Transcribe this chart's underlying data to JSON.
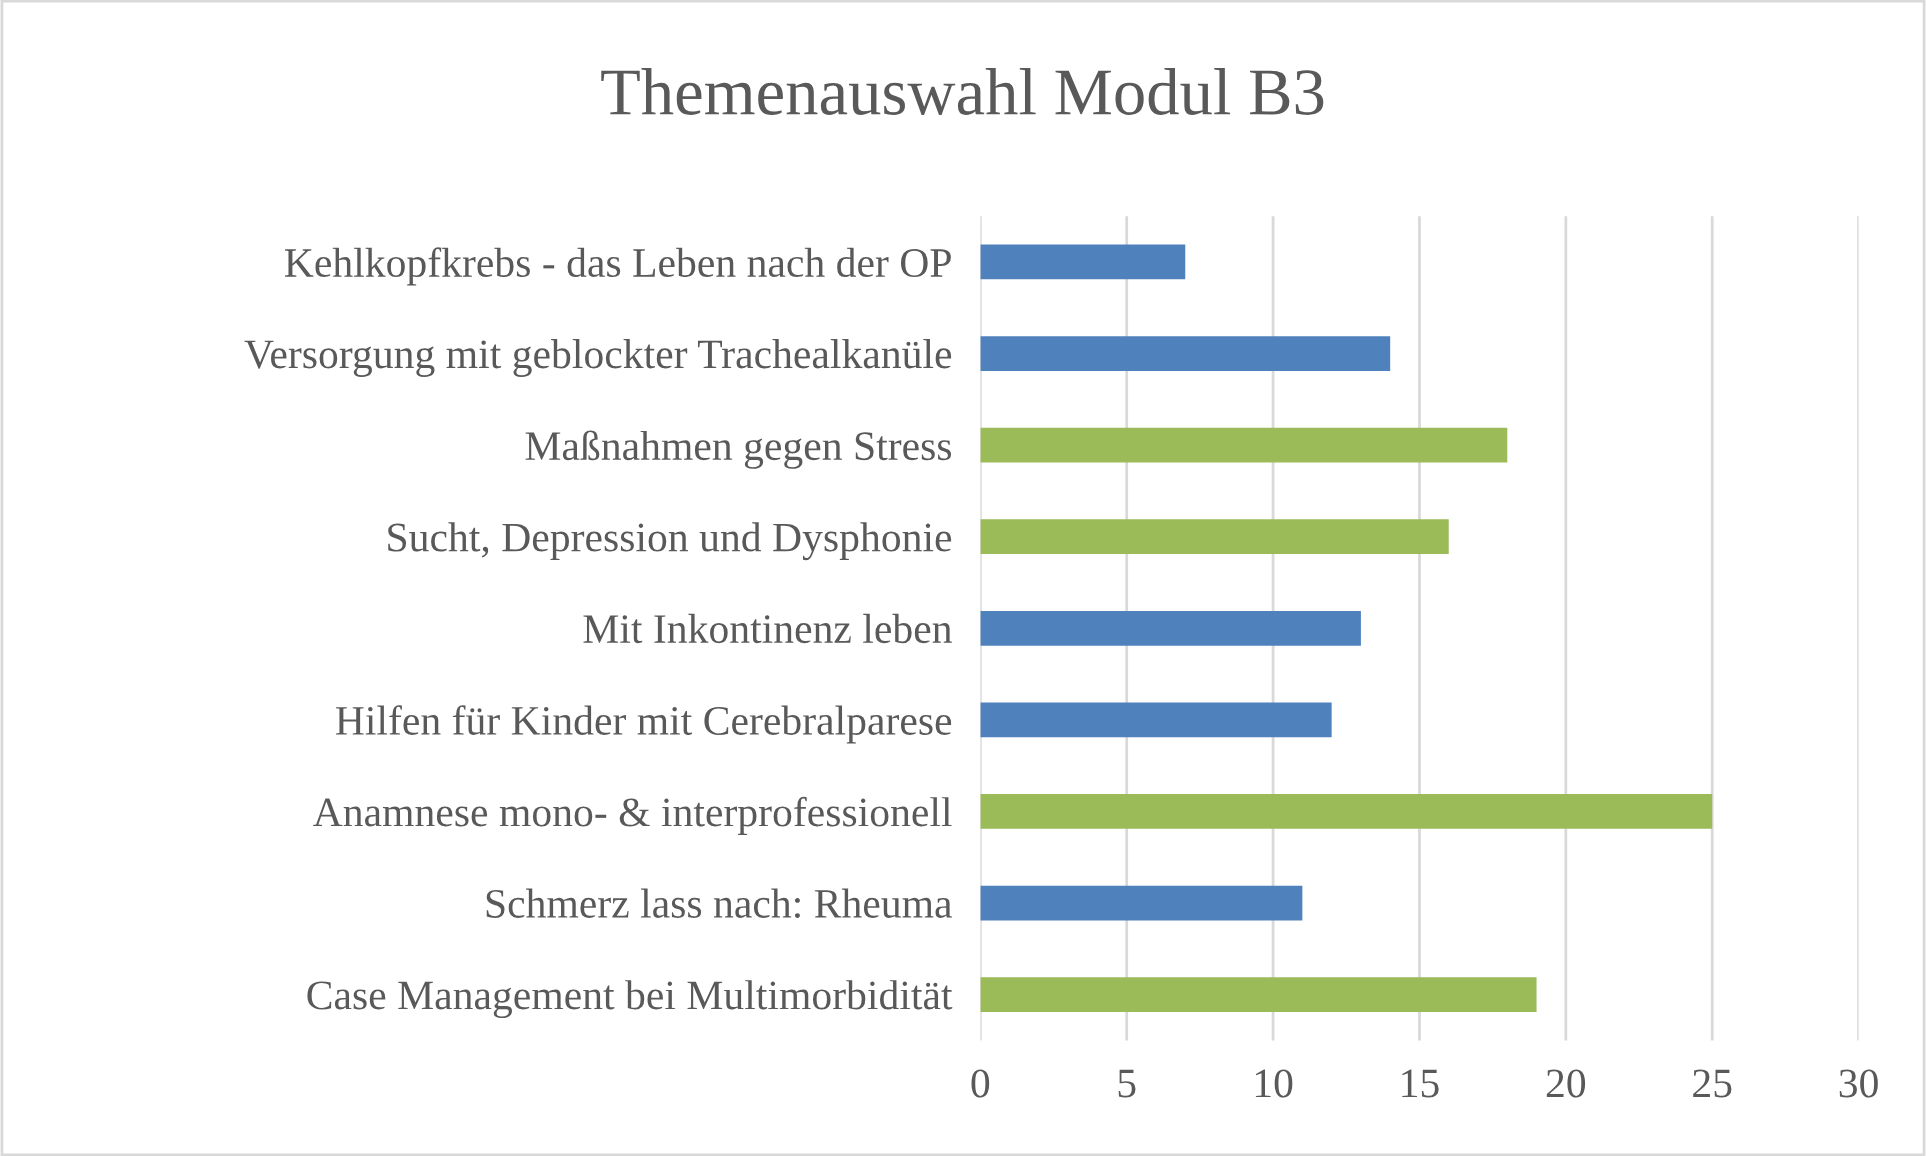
{
  "chart_data": {
    "type": "bar",
    "title": "Themenauswahl Modul B3",
    "orientation": "horizontal",
    "categories": [
      "Kehlkopfkrebs - das Leben nach der OP",
      "Versorgung mit geblockter Trachealkanüle",
      "Maßnahmen gegen Stress",
      "Sucht, Depression und Dysphonie",
      "Mit Inkontinenz leben",
      "Hilfen für Kinder mit Cerebralparese",
      "Anamnese mono- & interprofessionell",
      "Schmerz lass nach: Rheuma",
      "Case Management bei Multimorbidität"
    ],
    "values": [
      7,
      14,
      18,
      16,
      13,
      12,
      25,
      11,
      19
    ],
    "colors": [
      "#4f81bd",
      "#4f81bd",
      "#9bbb59",
      "#9bbb59",
      "#4f81bd",
      "#4f81bd",
      "#9bbb59",
      "#4f81bd",
      "#9bbb59"
    ],
    "xlim": [
      0,
      30
    ],
    "xticks": [
      0,
      5,
      10,
      15,
      20,
      25,
      30
    ],
    "grid": "x",
    "legend": false
  }
}
